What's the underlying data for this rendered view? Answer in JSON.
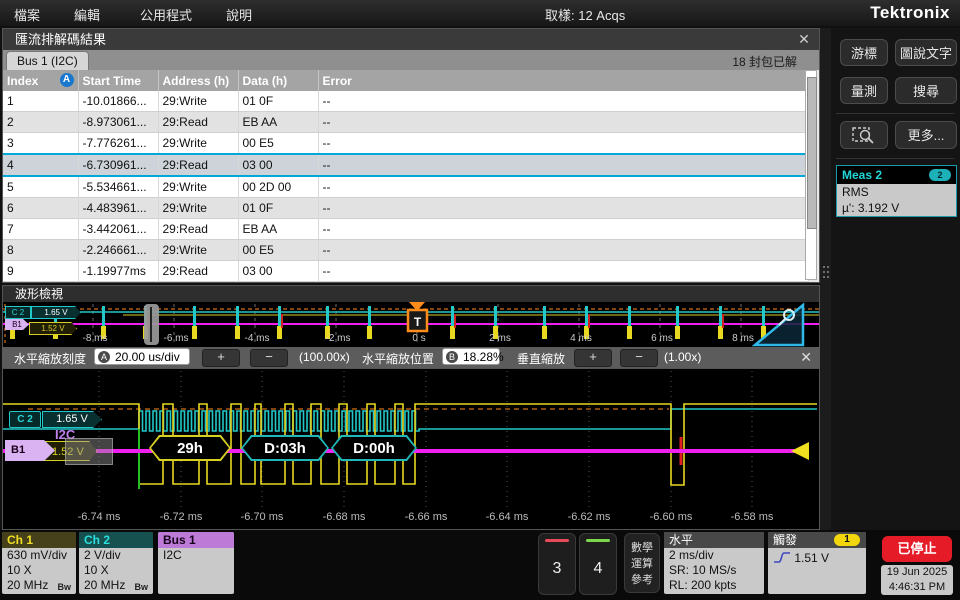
{
  "menu_bar": {
    "items": [
      "檔案",
      "編輯",
      "公用程式",
      "說明"
    ],
    "acq_status": "取樣: 12 Acqs",
    "logo": "Tektronix"
  },
  "results_panel": {
    "title": "匯流排解碼結果",
    "close": "✕",
    "tab": "Bus 1 (I2C)",
    "packets_decoded": "18 封包已解",
    "table": {
      "headers": [
        "Index",
        "Start Time",
        "Address (h)",
        "Data (h)",
        "Error"
      ],
      "index_badge": "A",
      "rows": [
        {
          "index": "1",
          "start": "-10.01866...",
          "addr": "29:Write",
          "data": "01 0F",
          "error": "--"
        },
        {
          "index": "2",
          "start": "-8.973061...",
          "addr": "29:Read",
          "data": "EB AA",
          "error": "--"
        },
        {
          "index": "3",
          "start": "-7.776261...",
          "addr": "29:Write",
          "data": "00 E5",
          "error": "--"
        },
        {
          "index": "4",
          "start": "-6.730961...",
          "addr": "29:Read",
          "data": "03 00",
          "error": "--"
        },
        {
          "index": "5",
          "start": "-5.534661...",
          "addr": "29:Write",
          "data": "00 2D 00",
          "error": "--"
        },
        {
          "index": "6",
          "start": "-4.483961...",
          "addr": "29:Write",
          "data": "01 0F",
          "error": "--"
        },
        {
          "index": "7",
          "start": "-3.442061...",
          "addr": "29:Read",
          "data": "EB AA",
          "error": "--"
        },
        {
          "index": "8",
          "start": "-2.246661...",
          "addr": "29:Write",
          "data": "00 E5",
          "error": "--"
        },
        {
          "index": "9",
          "start": "-1.19977ms",
          "addr": "29:Read",
          "data": "03 00",
          "error": "--"
        }
      ]
    }
  },
  "sidebar": {
    "cursors": "游標",
    "callout": "圖說文字",
    "measure": "量測",
    "search": "搜尋",
    "more": "更多...",
    "meas2": {
      "title": "Meas 2",
      "count": "2",
      "type": "RMS",
      "value": "µ': 3.192 V"
    }
  },
  "waveform_panel": {
    "title": "波形檢視",
    "overview": {
      "channel_badge": "C 2",
      "channel_value": "1.65 V",
      "bus_badge": "B1",
      "bus_value": "1.52 V",
      "trigger_label": "T",
      "time_labels": [
        "-8 ms",
        "-6 ms",
        "-4 ms",
        "-2 ms",
        "0 s",
        "2 ms",
        "4 ms",
        "6 ms",
        "8 ms"
      ]
    },
    "zoom_controls": {
      "h_scale_label": "水平縮放刻度",
      "h_scale_badge": "A",
      "h_scale_value": "20.00 us/div",
      "plus": "+",
      "minus": "−",
      "h_scale_factor": "(100.00x)",
      "h_pos_label": "水平縮放位置",
      "h_pos_badge": "B",
      "h_pos_value": "18.28%",
      "v_zoom_label": "垂直縮放",
      "v_zoom_factor": "(1.00x)",
      "close": "✕"
    },
    "main_view": {
      "channel_badge": "C 2",
      "channel_value": "1.65 V",
      "bus_type": "I2C",
      "bus_badge": "B1",
      "bus_value": "1.52 V",
      "decode_fields": [
        "29h",
        "D:03h",
        "D:00h"
      ],
      "time_labels": [
        "-6.74 ms",
        "-6.72 ms",
        "-6.70 ms",
        "-6.68 ms",
        "-6.66 ms",
        "-6.64 ms",
        "-6.62 ms",
        "-6.60 ms",
        "-6.58 ms"
      ]
    }
  },
  "bottom_bar": {
    "ch1": {
      "name": "Ch 1",
      "line1": "630 mV/div",
      "line2": "10 X",
      "line3": "20 MHz",
      "bw": "Bw"
    },
    "ch2": {
      "name": "Ch 2",
      "line1": "2 V/div",
      "line2": "10 X",
      "line3": "20 MHz",
      "bw": "Bw"
    },
    "bus1": {
      "name": "Bus 1",
      "line1": "I2C"
    },
    "ch3": "3",
    "ch4": "4",
    "math": {
      "line1": "數學",
      "line2": "運算",
      "line3": "參考"
    },
    "horizontal": {
      "title": "水平",
      "line1": "2 ms/div",
      "line2": "SR: 10 MS/s",
      "line3": "RL: 200 kpts"
    },
    "trigger": {
      "title": "觸發",
      "badge": "1",
      "value": "1.51 V"
    },
    "run_state": "已停止",
    "date": "19 Jun 2025",
    "time": "4:46:31 PM"
  }
}
